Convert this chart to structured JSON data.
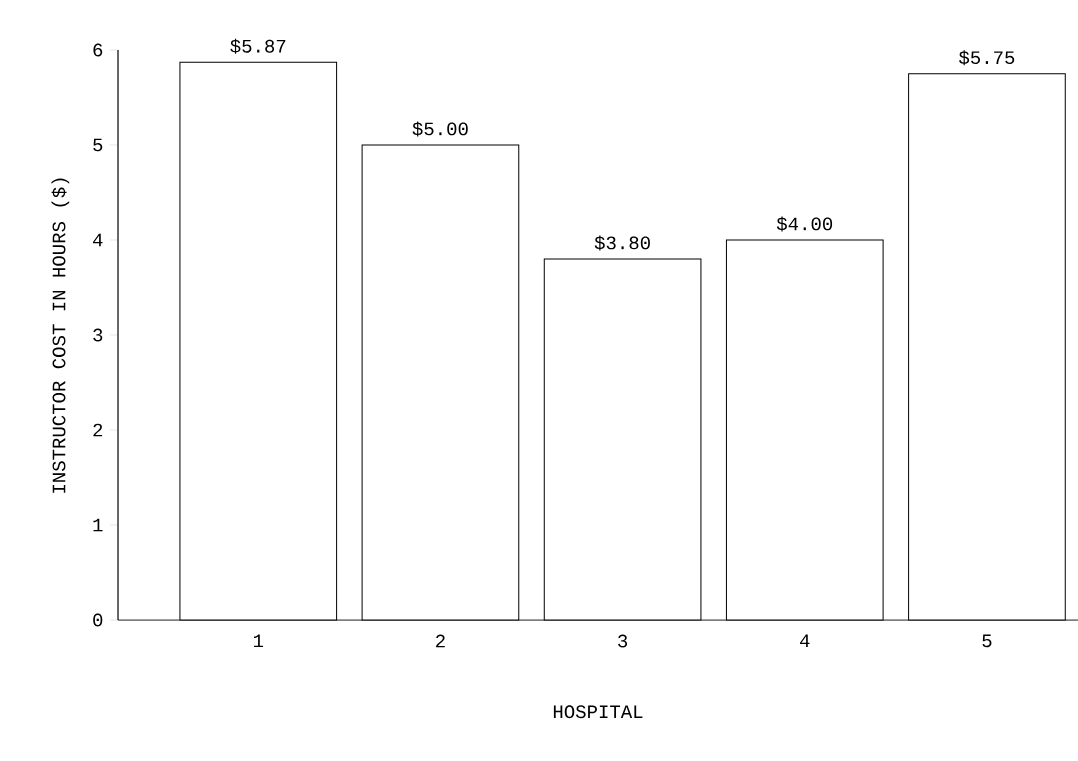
{
  "chart_data": {
    "type": "bar",
    "xlabel": "HOSPITAL",
    "ylabel": "INSTRUCTOR COST IN HOURS ($)",
    "categories": [
      "1",
      "2",
      "3",
      "4",
      "5"
    ],
    "values": [
      5.87,
      5.0,
      3.8,
      4.0,
      5.75
    ],
    "value_labels": [
      "$5.87",
      "$5.00",
      "$3.80",
      "$4.00",
      "$5.75"
    ],
    "color": "#000000",
    "ylim": [
      0,
      6
    ],
    "yticks": [
      0,
      1,
      2,
      3,
      4,
      5,
      6
    ],
    "grid": false
  }
}
